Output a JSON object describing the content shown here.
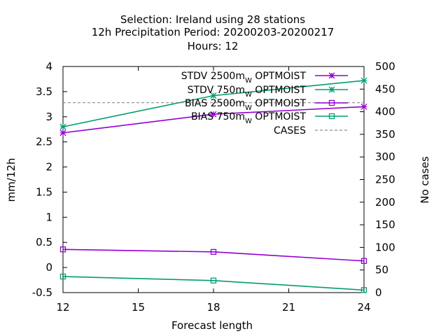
{
  "chart_data": {
    "type": "line",
    "title_lines": [
      "Selection: Ireland using    28 stations",
      "12h Precipitation    Period: 20200203-20200217",
      "Hours:  12"
    ],
    "xlabel": "Forecast length",
    "ylabel": "mm/12h",
    "y2label": "No cases",
    "xlim": [
      12,
      24
    ],
    "ylim": [
      -0.5,
      4
    ],
    "y2lim": [
      0,
      500
    ],
    "xticks": [
      12,
      15,
      18,
      21,
      24
    ],
    "yticks": [
      -0.5,
      0,
      0.5,
      1,
      1.5,
      2,
      2.5,
      3,
      3.5,
      4
    ],
    "y2ticks": [
      0,
      50,
      100,
      150,
      200,
      250,
      300,
      350,
      400,
      450,
      500
    ],
    "grid": false,
    "legend_position": "top-right",
    "x": [
      12,
      18,
      24
    ],
    "series": [
      {
        "name": "STDV 2500m",
        "name_sub": "W",
        "name_tail": " OPTMOIST",
        "axis": "y",
        "color": "#9400d3",
        "marker": "star",
        "values": [
          2.68,
          3.05,
          3.2
        ]
      },
      {
        "name": "STDV 750m",
        "name_sub": "W",
        "name_tail": " OPTMOIST",
        "axis": "y",
        "color": "#009e73",
        "marker": "star",
        "values": [
          2.8,
          3.42,
          3.72
        ]
      },
      {
        "name": "BIAS 2500m",
        "name_sub": "W",
        "name_tail": " OPTMOIST",
        "axis": "y",
        "color": "#9400d3",
        "marker": "square",
        "values": [
          0.36,
          0.31,
          0.13
        ]
      },
      {
        "name": "BIAS 750m",
        "name_sub": "W",
        "name_tail": " OPTMOIST",
        "axis": "y",
        "color": "#009e73",
        "marker": "square",
        "values": [
          -0.18,
          -0.26,
          -0.45
        ]
      },
      {
        "name": "CASES",
        "name_sub": "",
        "name_tail": "",
        "axis": "y2",
        "color": "#8c8c8c",
        "marker": "none",
        "dashed": true,
        "values": [
          420,
          420,
          420
        ]
      }
    ]
  }
}
